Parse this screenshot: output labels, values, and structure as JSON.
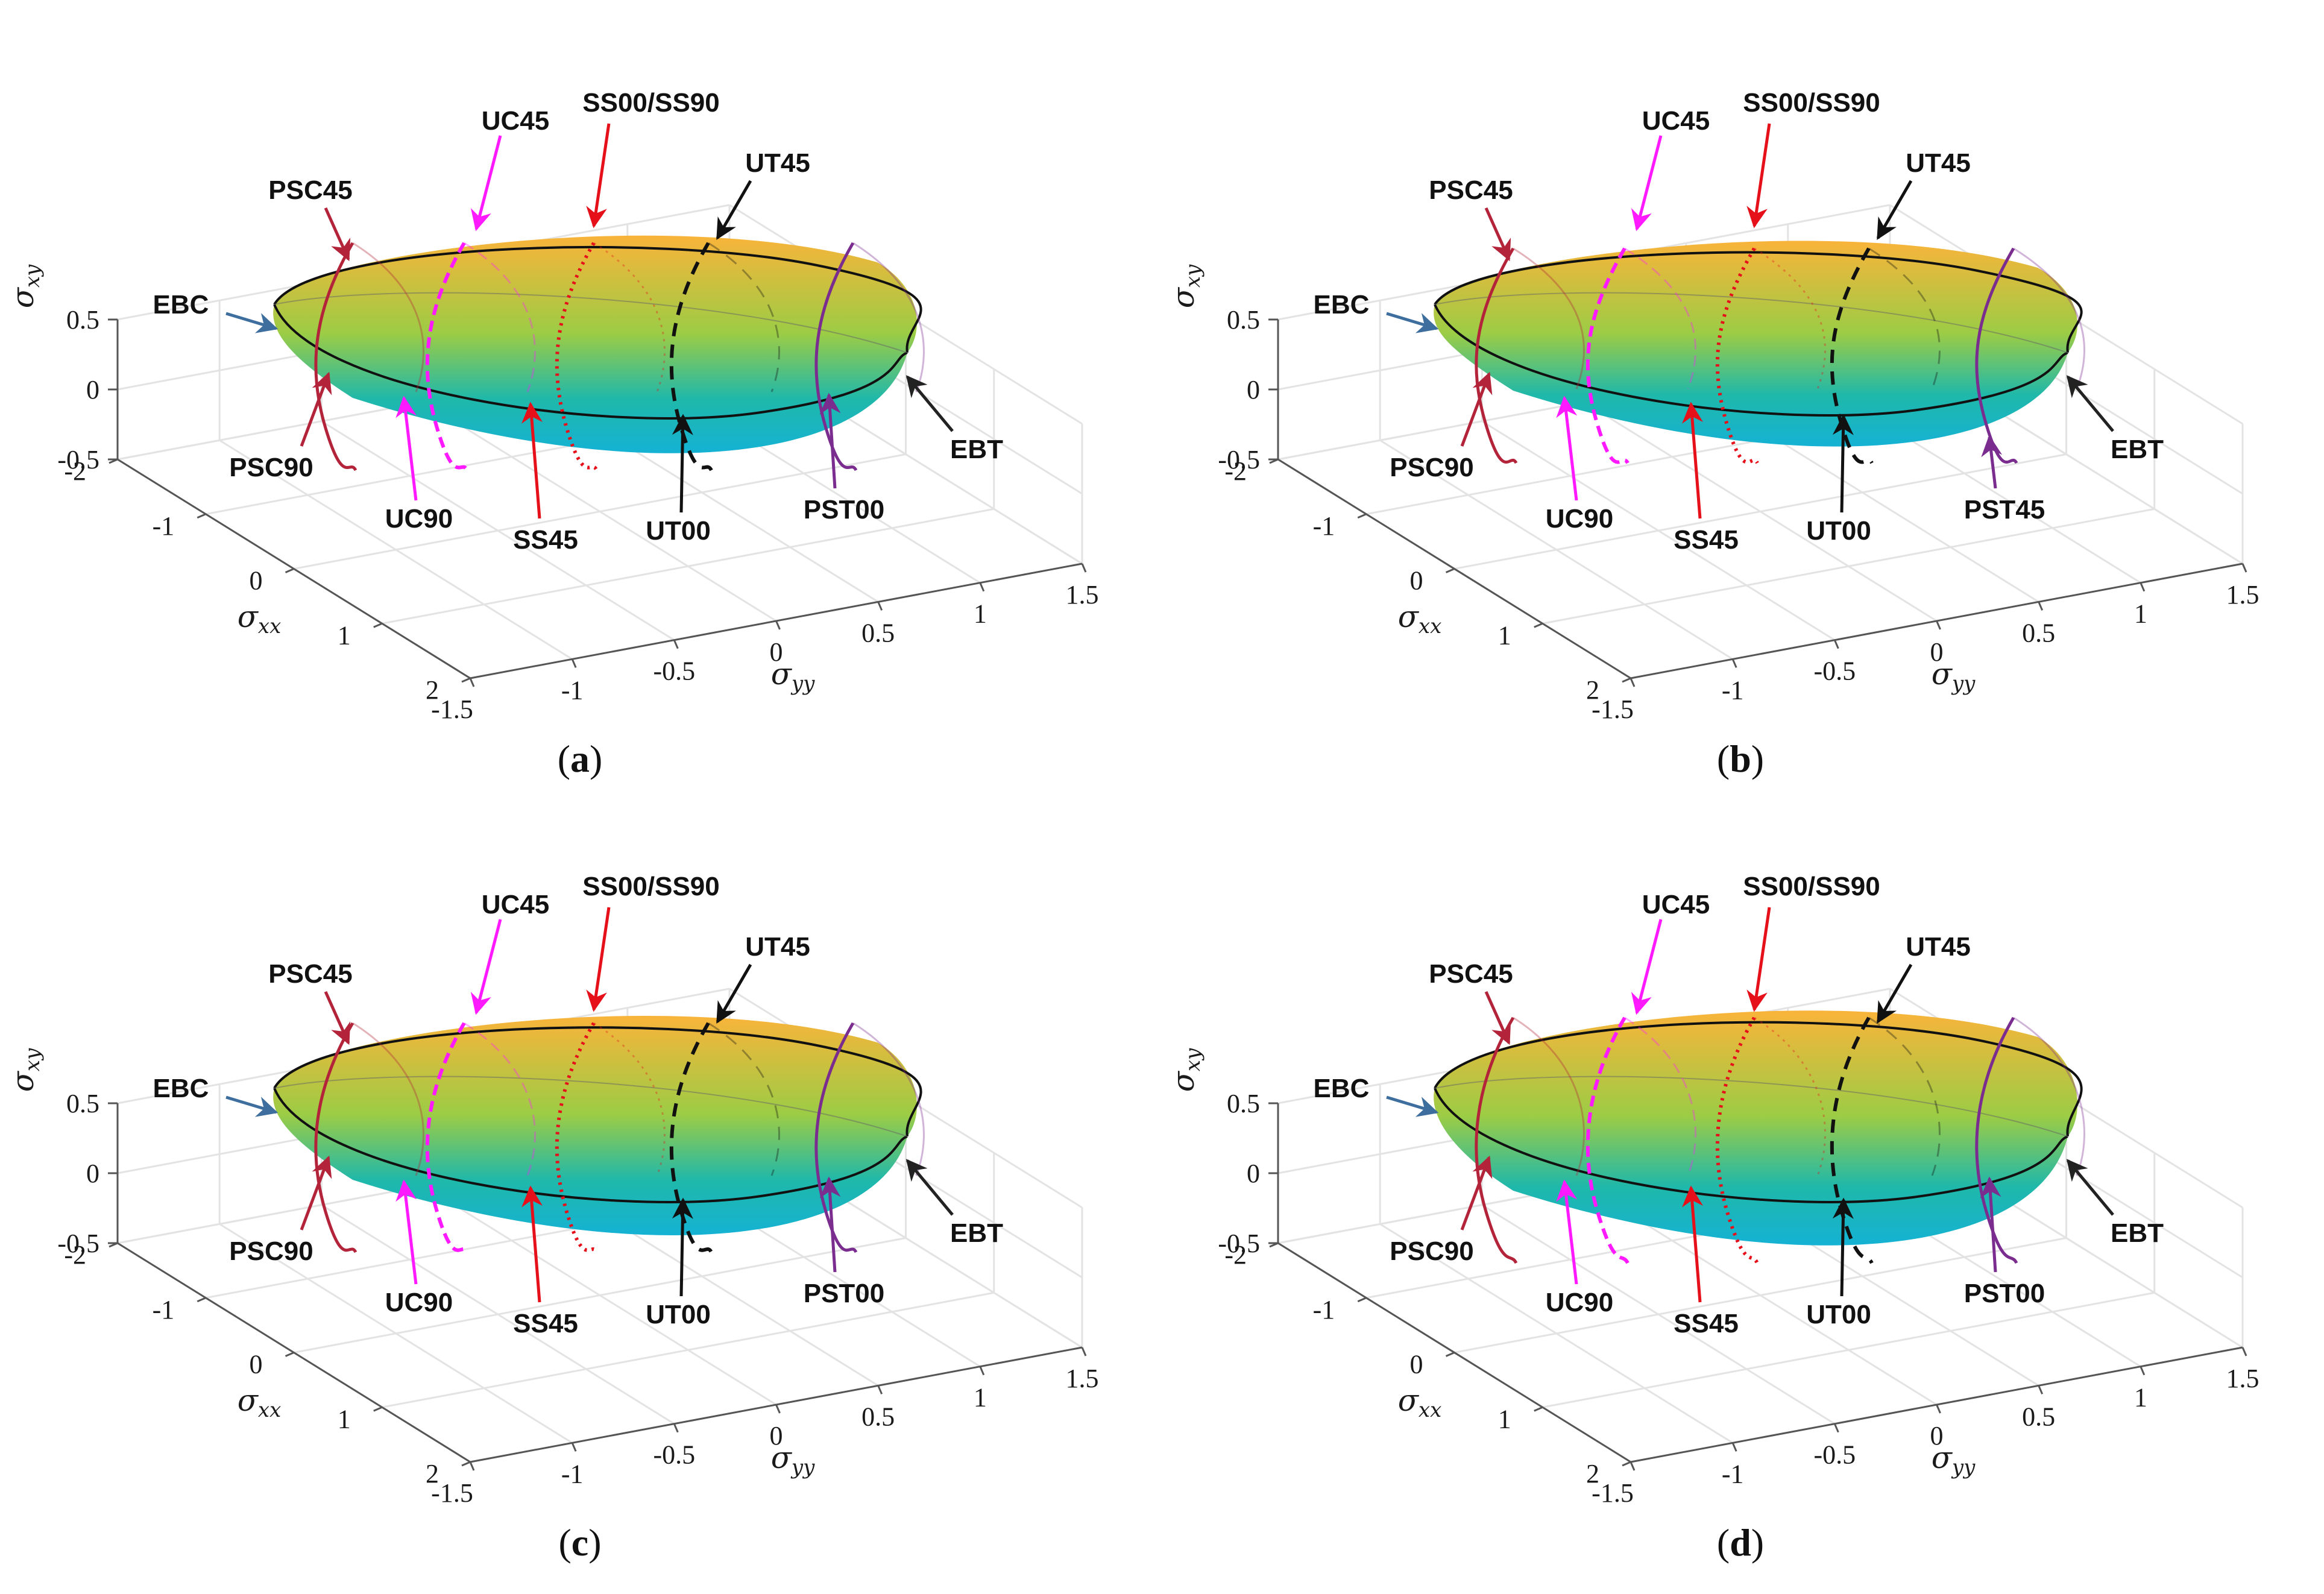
{
  "colors": {
    "surface_top": "#f9b43a",
    "surface_mid": "#9ccc45",
    "surface_low": "#1fb8aa",
    "surface_bottom": "#15b2d4",
    "PSC": "#b3243a",
    "UC": "#ff19ff",
    "SS": "#e5101a",
    "UT": "#111111",
    "PST": "#7a2c8f",
    "EBC": "#3d6e9e",
    "EBT": "#222222",
    "grid": "#e3e3e3",
    "axes": "#555555"
  },
  "axes": {
    "x_label": "σ",
    "x_sub": "xx",
    "y_label": "σ",
    "y_sub": "yy",
    "z_label": "σ",
    "z_sub": "xy",
    "x_ticks": [
      "-2",
      "-1",
      "0",
      "1",
      "2"
    ],
    "y_ticks": [
      "-1.5",
      "-1",
      "-0.5",
      "0",
      "0.5",
      "1",
      "1.5"
    ],
    "z_ticks": [
      "0.5",
      "0",
      "-0.5"
    ]
  },
  "chart_data": [
    {
      "type": "surface",
      "caption": "a",
      "xlim": [
        -2,
        2
      ],
      "ylim": [
        -1.5,
        1.5
      ],
      "zlim": [
        -0.5,
        0.5
      ],
      "surface": {
        "top": 0.25,
        "bottom": -0.28,
        "rim_bulge": 0.0
      },
      "annotations": [
        "PSC45",
        "UC45",
        "SS00/SS90",
        "UT45",
        "EBC",
        "EBT",
        "PSC90",
        "UC90",
        "SS45",
        "UT00",
        "PST00"
      ]
    },
    {
      "type": "surface",
      "caption": "b",
      "xlim": [
        -2,
        2
      ],
      "ylim": [
        -1.5,
        1.5
      ],
      "zlim": [
        -0.5,
        0.5
      ],
      "surface": {
        "top": 0.22,
        "bottom": -0.24,
        "rim_bulge": 0.05
      },
      "annotations": [
        "PSC45",
        "UC45",
        "SS00/SS90",
        "UT45",
        "EBC",
        "EBT",
        "PSC90",
        "UC90",
        "SS45",
        "UT00",
        "PST45"
      ]
    },
    {
      "type": "surface",
      "caption": "c",
      "xlim": [
        -2,
        2
      ],
      "ylim": [
        -1.5,
        1.5
      ],
      "zlim": [
        -0.5,
        0.5
      ],
      "surface": {
        "top": 0.27,
        "bottom": -0.27,
        "rim_bulge": 0.0
      },
      "annotations": [
        "PSC45",
        "UC45",
        "SS00/SS90",
        "UT45",
        "EBC",
        "EBT",
        "PSC90",
        "UC90",
        "SS45",
        "UT00",
        "PST00"
      ]
    },
    {
      "type": "surface",
      "caption": "d",
      "xlim": [
        -2,
        2
      ],
      "ylim": [
        -1.5,
        1.5
      ],
      "zlim": [
        -0.5,
        0.5
      ],
      "surface": {
        "top": 0.3,
        "bottom": -0.33,
        "rim_bulge": 0.0
      },
      "annotations": [
        "PSC45",
        "UC45",
        "SS00/SS90",
        "UT45",
        "EBC",
        "EBT",
        "PSC90",
        "UC90",
        "SS45",
        "UT00",
        "PST00"
      ]
    }
  ]
}
